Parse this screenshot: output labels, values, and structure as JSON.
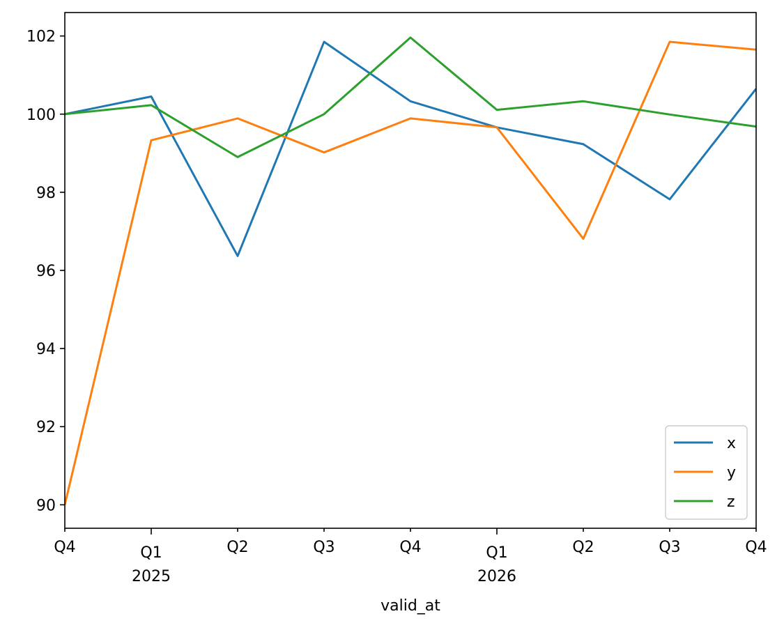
{
  "chart_data": {
    "type": "line",
    "title": "",
    "xlabel": "valid_at",
    "ylabel": "",
    "x": [
      "2024Q4",
      "2025Q1",
      "2025Q2",
      "2025Q3",
      "2025Q4",
      "2026Q1",
      "2026Q2",
      "2026Q3",
      "2026Q4"
    ],
    "x_tick_labels": [
      {
        "quarter": "Q4",
        "year": ""
      },
      {
        "quarter": "Q1",
        "year": "2025"
      },
      {
        "quarter": "Q2",
        "year": ""
      },
      {
        "quarter": "Q3",
        "year": ""
      },
      {
        "quarter": "Q4",
        "year": ""
      },
      {
        "quarter": "Q1",
        "year": "2026"
      },
      {
        "quarter": "Q2",
        "year": ""
      },
      {
        "quarter": "Q3",
        "year": ""
      },
      {
        "quarter": "Q4",
        "year": ""
      }
    ],
    "ylim": [
      89.4,
      102.6
    ],
    "y_ticks": [
      90,
      92,
      94,
      96,
      98,
      100,
      102
    ],
    "grid": false,
    "legend_position": "lower-right",
    "series": [
      {
        "name": "x",
        "color": "#1f77b4",
        "values": [
          100.0,
          100.45,
          96.37,
          101.85,
          100.33,
          99.66,
          99.23,
          97.82,
          100.65
        ]
      },
      {
        "name": "y",
        "color": "#ff7f0e",
        "values": [
          90.0,
          99.33,
          99.89,
          99.02,
          99.89,
          99.66,
          96.81,
          101.85,
          101.65
        ]
      },
      {
        "name": "z",
        "color": "#2ca02c",
        "values": [
          100.0,
          100.23,
          98.9,
          100.0,
          101.96,
          100.11,
          100.33,
          99.99,
          99.68
        ]
      }
    ]
  }
}
